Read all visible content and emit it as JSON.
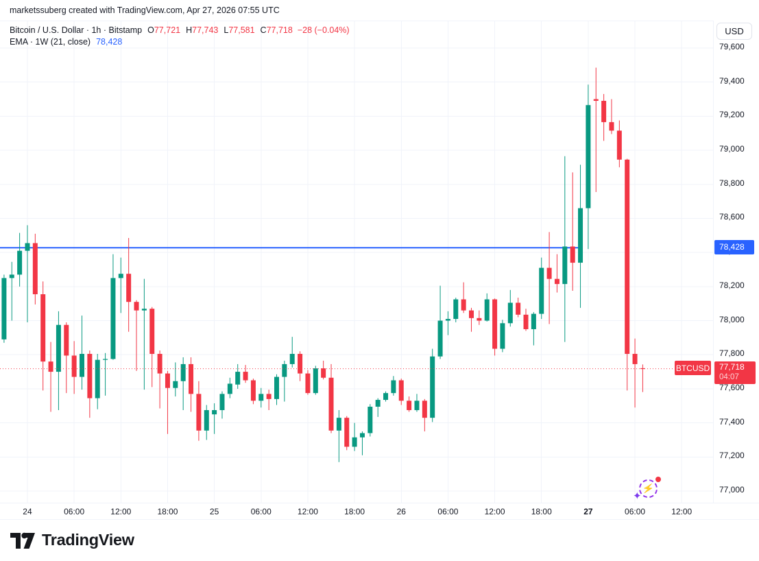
{
  "attribution": "marketssuberg created with TradingView.com, Apr 27, 2026 07:55 UTC",
  "legend": {
    "symbol_line": {
      "title": "Bitcoin / U.S. Dollar · 1h · Bitstamp",
      "o_label": "O",
      "o": "77,721",
      "h_label": "H",
      "h": "77,743",
      "l_label": "L",
      "l": "77,581",
      "c_label": "C",
      "c": "77,718",
      "change": "−28 (−0.04%)"
    },
    "ema_line": {
      "title": "EMA · 1W (21, close)",
      "value": "78,428"
    }
  },
  "axis": {
    "currency": "USD"
  },
  "labels": {
    "ema_price": "78,428",
    "last_price": "77,718",
    "countdown": "04:07",
    "symbol_tag": "BTCUSD"
  },
  "footer": {
    "brand": "TradingView"
  },
  "colors": {
    "up": "#089981",
    "down": "#F23645",
    "ema": "#2962FF",
    "last_price_line": "#F23645",
    "grid": "#F0F3FA",
    "axis_text": "#131722"
  },
  "chart_data": {
    "type": "candlestick",
    "title": "Bitcoin / U.S. Dollar",
    "symbol": "BTCUSD",
    "exchange": "Bitstamp",
    "interval": "1h",
    "start_time": "2026-04-23 21:00 UTC",
    "end_time": "2026-04-27 07:00 UTC",
    "ylim": [
      77000,
      79600
    ],
    "price_ticks": [
      {
        "label": "79,600",
        "v": 79600
      },
      {
        "label": "79,400",
        "v": 79400
      },
      {
        "label": "79,200",
        "v": 79200
      },
      {
        "label": "79,000",
        "v": 79000
      },
      {
        "label": "78,800",
        "v": 78800
      },
      {
        "label": "78,600",
        "v": 78600
      },
      {
        "label": "78,400",
        "v": 78400
      },
      {
        "label": "78,200",
        "v": 78200
      },
      {
        "label": "78,000",
        "v": 78000
      },
      {
        "label": "77,800",
        "v": 77800
      },
      {
        "label": "77,600",
        "v": 77600
      },
      {
        "label": "77,400",
        "v": 77400
      },
      {
        "label": "77,200",
        "v": 77200
      },
      {
        "label": "77,000",
        "v": 77000
      }
    ],
    "time_ticks": [
      {
        "label": "24",
        "i": 3,
        "day": true
      },
      {
        "label": "06:00",
        "i": 9
      },
      {
        "label": "12:00",
        "i": 15
      },
      {
        "label": "18:00",
        "i": 21
      },
      {
        "label": "25",
        "i": 27,
        "day": true
      },
      {
        "label": "06:00",
        "i": 33
      },
      {
        "label": "12:00",
        "i": 39
      },
      {
        "label": "18:00",
        "i": 45
      },
      {
        "label": "26",
        "i": 51,
        "day": true
      },
      {
        "label": "06:00",
        "i": 57
      },
      {
        "label": "12:00",
        "i": 63
      },
      {
        "label": "18:00",
        "i": 69
      },
      {
        "label": "27",
        "i": 75,
        "day": true,
        "bold": true
      },
      {
        "label": "06:00",
        "i": 81
      },
      {
        "label": "12:00",
        "i": 87
      }
    ],
    "overlays": {
      "ema": {
        "name": "EMA 1W (21, close)",
        "value": 78428,
        "ends_at_candle_index": 74
      },
      "last_price": {
        "value": 77718,
        "countdown": "04:07"
      }
    },
    "candles_format": [
      "open",
      "high",
      "low",
      "close"
    ],
    "candles": [
      [
        77890,
        78270,
        77870,
        78250
      ],
      [
        78250,
        78345,
        78000,
        78270
      ],
      [
        78270,
        78515,
        78200,
        78410
      ],
      [
        78410,
        78560,
        77990,
        78455
      ],
      [
        78455,
        78510,
        78095,
        78155
      ],
      [
        78155,
        78230,
        77590,
        77760
      ],
      [
        77760,
        77875,
        77465,
        77700
      ],
      [
        77700,
        78055,
        77475,
        77975
      ],
      [
        77975,
        77990,
        77575,
        77795
      ],
      [
        77795,
        77880,
        77570,
        77670
      ],
      [
        77670,
        78030,
        77595,
        77805
      ],
      [
        77805,
        77825,
        77430,
        77545
      ],
      [
        77545,
        77805,
        77480,
        77770
      ],
      [
        77770,
        77810,
        77560,
        77775
      ],
      [
        77775,
        78390,
        77770,
        78250
      ],
      [
        78250,
        78370,
        78045,
        78275
      ],
      [
        78275,
        78485,
        77935,
        78110
      ],
      [
        78110,
        78120,
        77705,
        78060
      ],
      [
        78060,
        78245,
        77595,
        78070
      ],
      [
        78070,
        78080,
        77610,
        77805
      ],
      [
        77805,
        77825,
        77485,
        77690
      ],
      [
        77690,
        77705,
        77335,
        77605
      ],
      [
        77605,
        77755,
        77555,
        77645
      ],
      [
        77645,
        77785,
        77475,
        77745
      ],
      [
        77745,
        77785,
        77465,
        77570
      ],
      [
        77570,
        77645,
        77295,
        77355
      ],
      [
        77355,
        77505,
        77300,
        77475
      ],
      [
        77450,
        77515,
        77335,
        77475
      ],
      [
        77475,
        77585,
        77425,
        77570
      ],
      [
        77570,
        77665,
        77545,
        77630
      ],
      [
        77625,
        77745,
        77600,
        77700
      ],
      [
        77700,
        77740,
        77635,
        77650
      ],
      [
        77650,
        77660,
        77510,
        77530
      ],
      [
        77530,
        77605,
        77490,
        77570
      ],
      [
        77570,
        77595,
        77475,
        77540
      ],
      [
        77540,
        77685,
        77505,
        77670
      ],
      [
        77670,
        77765,
        77525,
        77745
      ],
      [
        77745,
        77905,
        77725,
        77805
      ],
      [
        77805,
        77820,
        77645,
        77690
      ],
      [
        77690,
        77710,
        77565,
        77575
      ],
      [
        77575,
        77735,
        77565,
        77720
      ],
      [
        77720,
        77765,
        77655,
        77665
      ],
      [
        77665,
        77745,
        77340,
        77355
      ],
      [
        77355,
        77475,
        77170,
        77430
      ],
      [
        77430,
        77440,
        77240,
        77260
      ],
      [
        77260,
        77400,
        77235,
        77315
      ],
      [
        77315,
        77350,
        77210,
        77340
      ],
      [
        77340,
        77510,
        77320,
        77495
      ],
      [
        77495,
        77545,
        77435,
        77535
      ],
      [
        77535,
        77585,
        77525,
        77575
      ],
      [
        77575,
        77675,
        77560,
        77650
      ],
      [
        77650,
        77660,
        77505,
        77530
      ],
      [
        77530,
        77555,
        77465,
        77475
      ],
      [
        77475,
        77570,
        77465,
        77530
      ],
      [
        77530,
        77540,
        77350,
        77430
      ],
      [
        77430,
        77835,
        77405,
        77790
      ],
      [
        77790,
        78205,
        77775,
        78000
      ],
      [
        78000,
        78055,
        77915,
        78010
      ],
      [
        78010,
        78135,
        77990,
        78125
      ],
      [
        78125,
        78225,
        78045,
        78060
      ],
      [
        78060,
        78075,
        77935,
        78015
      ],
      [
        78015,
        78060,
        77975,
        78000
      ],
      [
        78000,
        78160,
        77995,
        78125
      ],
      [
        78125,
        78130,
        77795,
        77835
      ],
      [
        77835,
        78005,
        77815,
        77985
      ],
      [
        77985,
        78180,
        77965,
        78105
      ],
      [
        78105,
        78135,
        78020,
        78035
      ],
      [
        78035,
        78070,
        77940,
        77950
      ],
      [
        77950,
        78050,
        77855,
        78040
      ],
      [
        78040,
        78370,
        78010,
        78310
      ],
      [
        78310,
        78520,
        77980,
        78245
      ],
      [
        78245,
        78390,
        78165,
        78215
      ],
      [
        78215,
        78965,
        77875,
        78435
      ],
      [
        78435,
        78870,
        78175,
        78340
      ],
      [
        78340,
        78915,
        78075,
        78660
      ],
      [
        78660,
        79385,
        78420,
        79265
      ],
      [
        79300,
        79485,
        78755,
        79290
      ],
      [
        79290,
        79330,
        79055,
        79165
      ],
      [
        79165,
        79300,
        79095,
        79115
      ],
      [
        79115,
        79175,
        78900,
        78945
      ],
      [
        78945,
        78950,
        77590,
        77805
      ],
      [
        77805,
        77895,
        77490,
        77745
      ],
      [
        77721,
        77743,
        77581,
        77718
      ]
    ]
  }
}
